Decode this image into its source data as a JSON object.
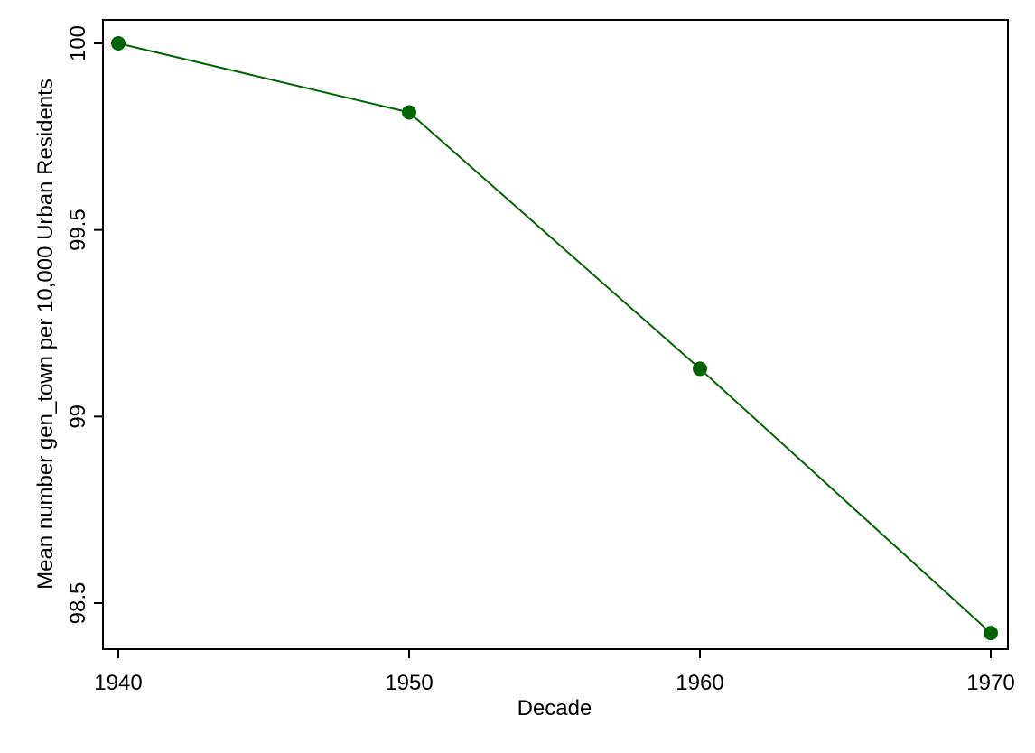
{
  "chart_data": {
    "type": "line",
    "title": "",
    "xlabel": "Decade",
    "ylabel": "Mean number gen_town per 10,000 Urban Residents",
    "x": [
      1940,
      1950,
      1960,
      1970
    ],
    "series": [
      {
        "values": [
          100.0,
          99.815,
          99.128,
          98.42
        ]
      }
    ],
    "xlim": [
      1940,
      1970
    ],
    "ylim": [
      98.5,
      100
    ],
    "xticks": [
      1940,
      1950,
      1960,
      1970
    ],
    "xtick_labels": [
      "1940",
      "1950",
      "1960",
      "1970"
    ],
    "yticks": [
      98.5,
      99,
      99.5,
      100
    ],
    "ytick_labels": [
      "98.5",
      "99",
      "99.5",
      "100"
    ],
    "grid": false,
    "legend": "none",
    "colors": {
      "series": "#006400",
      "axis": "#000000",
      "background": "#ffffff"
    }
  }
}
